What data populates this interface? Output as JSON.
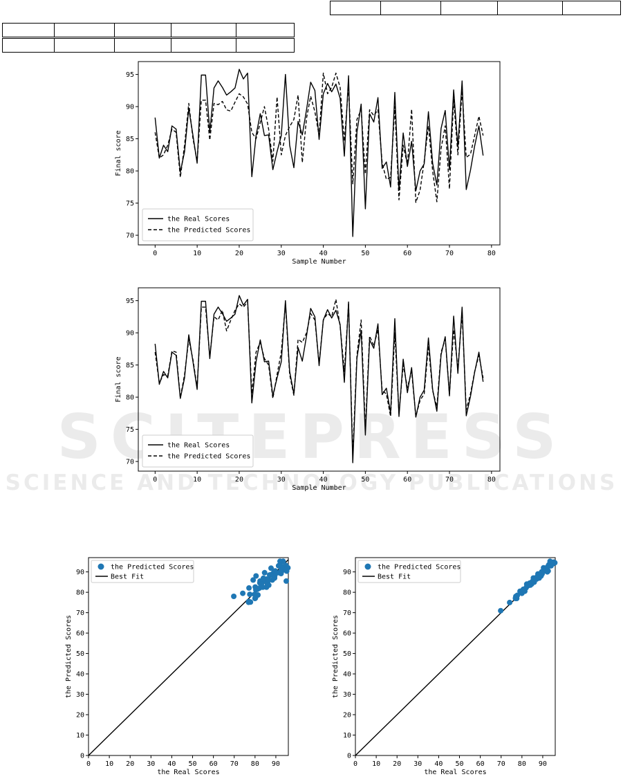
{
  "watermark": {
    "line1": "SCITEPRESS",
    "line2": "SCIENCE AND TECHNOLOGY PUBLICATIONS"
  },
  "chart_data": [
    {
      "type": "line",
      "title": "",
      "xlabel": "Sample Number",
      "ylabel": "Final score",
      "xlim": [
        -4,
        82
      ],
      "ylim": [
        68.5,
        97
      ],
      "xticks": [
        0,
        10,
        20,
        30,
        40,
        50,
        60,
        70,
        80
      ],
      "yticks": [
        70,
        75,
        80,
        85,
        90,
        95
      ],
      "legend": "lower-left",
      "series": [
        {
          "name": "the Real Scores",
          "style": "solid",
          "values": [
            88.3,
            82.0,
            84.0,
            83.0,
            87.0,
            86.5,
            79.8,
            83.0,
            89.7,
            85.5,
            81.2,
            94.9,
            94.9,
            86.0,
            92.9,
            94.0,
            93.0,
            91.8,
            92.3,
            92.9,
            95.8,
            94.3,
            95.2,
            79.1,
            85.5,
            88.9,
            85.5,
            85.6,
            80.2,
            83.0,
            85.5,
            95.0,
            84.0,
            80.5,
            87.7,
            85.6,
            89.5,
            93.8,
            92.5,
            84.9,
            92.0,
            93.6,
            92.3,
            93.5,
            91.3,
            82.3,
            94.8,
            69.8,
            86.0,
            90.4,
            74.1,
            88.9,
            87.6,
            91.4,
            80.4,
            81.4,
            77.5,
            92.2,
            77.0,
            85.9,
            80.7,
            84.6,
            76.9,
            80.0,
            81.1,
            89.2,
            81.2,
            77.8,
            86.6,
            89.4,
            80.2,
            92.6,
            83.7,
            94.0,
            77.1,
            80.1,
            83.9,
            87.0,
            82.4
          ]
        },
        {
          "name": "the Predicted Scores",
          "style": "dashed",
          "values": [
            86.0,
            82.0,
            82.5,
            84.0,
            86.5,
            86.0,
            79.0,
            84.0,
            90.5,
            85.0,
            81.5,
            91.0,
            91.0,
            84.8,
            90.5,
            90.3,
            90.8,
            89.5,
            89.3,
            90.7,
            92.0,
            91.5,
            90.4,
            86.0,
            85.0,
            87.5,
            90.0,
            86.5,
            81.5,
            91.5,
            82.5,
            85.5,
            86.9,
            88.0,
            91.8,
            81.3,
            88.2,
            91.6,
            89.2,
            85.5,
            95.2,
            92.0,
            93.0,
            95.2,
            93.0,
            84.6,
            93.2,
            78.0,
            88.0,
            89.5,
            79.5,
            89.5,
            88.6,
            89.5,
            81.2,
            78.7,
            79.0,
            90.0,
            75.5,
            84.0,
            81.0,
            89.6,
            75.1,
            77.0,
            81.5,
            87.0,
            80.0,
            75.2,
            83.5,
            87.0,
            77.2,
            91.2,
            82.5,
            92.5,
            82.1,
            82.6,
            85.5,
            88.5,
            85.5
          ]
        }
      ]
    },
    {
      "type": "line",
      "title": "",
      "xlabel": "Sample Number",
      "ylabel": "Final score",
      "xlim": [
        -4,
        82
      ],
      "ylim": [
        68.5,
        97
      ],
      "xticks": [
        0,
        10,
        20,
        30,
        40,
        50,
        60,
        70,
        80
      ],
      "yticks": [
        70,
        75,
        80,
        85,
        90,
        95
      ],
      "legend": "lower-left",
      "series": [
        {
          "name": "the Real Scores",
          "style": "solid",
          "values": [
            88.3,
            82.0,
            84.0,
            83.0,
            87.0,
            86.5,
            79.8,
            83.0,
            89.7,
            85.5,
            81.2,
            94.9,
            94.9,
            86.0,
            92.9,
            94.0,
            93.0,
            91.8,
            92.3,
            92.9,
            95.8,
            94.3,
            95.2,
            79.1,
            85.5,
            88.9,
            85.5,
            85.6,
            80.2,
            83.0,
            85.5,
            95.0,
            84.0,
            80.5,
            87.7,
            85.6,
            89.5,
            93.8,
            92.5,
            84.9,
            92.0,
            93.6,
            92.3,
            93.5,
            91.3,
            82.3,
            94.8,
            69.8,
            86.0,
            90.4,
            74.1,
            88.9,
            87.6,
            91.4,
            80.4,
            81.4,
            77.5,
            92.2,
            77.0,
            85.9,
            80.7,
            84.6,
            76.9,
            80.0,
            81.1,
            89.2,
            81.2,
            77.8,
            86.6,
            89.4,
            80.2,
            92.6,
            83.7,
            94.0,
            77.1,
            80.1,
            83.9,
            87.0,
            82.4
          ]
        },
        {
          "name": "the Predicted Scores",
          "style": "dashed",
          "values": [
            87.0,
            82.2,
            83.5,
            83.3,
            87.2,
            87.0,
            79.9,
            83.5,
            89.0,
            85.8,
            81.5,
            94.0,
            94.0,
            86.3,
            92.5,
            92.0,
            93.5,
            90.3,
            92.0,
            93.5,
            94.5,
            94.0,
            94.8,
            80.5,
            87.0,
            88.5,
            86.0,
            85.0,
            79.8,
            83.5,
            87.0,
            94.5,
            83.5,
            80.3,
            89.0,
            88.5,
            90.0,
            93.0,
            92.0,
            85.2,
            92.0,
            93.0,
            92.5,
            95.2,
            91.0,
            84.0,
            94.5,
            71.0,
            86.5,
            92.0,
            75.0,
            89.5,
            88.0,
            90.5,
            81.0,
            80.5,
            77.0,
            90.0,
            77.5,
            85.0,
            81.5,
            84.0,
            77.0,
            79.5,
            80.5,
            88.0,
            81.0,
            78.5,
            87.0,
            89.0,
            80.5,
            90.5,
            84.5,
            93.0,
            78.0,
            80.5,
            84.0,
            86.5,
            83.0
          ]
        }
      ]
    },
    {
      "type": "scatter",
      "title": "",
      "xlabel": "the Real Scores",
      "ylabel": "the Predicted Scores",
      "xlim": [
        0,
        96
      ],
      "ylim": [
        0,
        97
      ],
      "xticks": [
        0,
        10,
        20,
        30,
        40,
        50,
        60,
        70,
        80,
        90
      ],
      "yticks": [
        0,
        10,
        20,
        30,
        40,
        50,
        60,
        70,
        80,
        90
      ],
      "legend": "top-left",
      "color": "#1f77b4",
      "series": [
        {
          "name": "the Predicted Scores",
          "x": [
            69.8,
            74.1,
            77.0,
            77.1,
            77.5,
            77.8,
            79.1,
            80.1,
            80.2,
            80.4,
            80.5,
            81.2,
            81.4,
            82.0,
            82.3,
            83.0,
            83.9,
            84.0,
            84.6,
            85.5,
            85.6,
            86.0,
            86.6,
            87.0,
            87.7,
            88.3,
            88.9,
            89.4,
            89.7,
            90.4,
            91.3,
            91.8,
            92.2,
            92.5,
            92.9,
            93.5,
            94.0,
            94.8,
            95.0,
            95.8,
            76.9,
            79.8,
            81.1,
            83.7,
            84.9,
            85.9,
            87.6,
            89.2,
            89.5,
            92.0,
            92.3,
            92.6,
            93.6,
            94.3,
            94.9,
            95.2,
            86.5,
            82.4,
            83.0,
            80.0
          ],
          "y": [
            78.0,
            79.5,
            75.5,
            82.1,
            79.0,
            75.2,
            86.0,
            82.6,
            77.2,
            81.2,
            88.0,
            81.5,
            78.7,
            82.0,
            84.6,
            84.0,
            85.5,
            86.9,
            89.6,
            82.5,
            86.5,
            84.8,
            83.5,
            88.5,
            91.8,
            86.0,
            89.5,
            87.0,
            90.5,
            89.5,
            93.0,
            89.5,
            90.0,
            89.2,
            90.5,
            95.2,
            92.5,
            93.2,
            85.5,
            92.0,
            75.1,
            79.0,
            81.5,
            82.5,
            85.5,
            84.0,
            88.6,
            87.0,
            88.2,
            95.2,
            93.0,
            91.2,
            92.0,
            91.5,
            91.0,
            90.4,
            86.0,
            85.5,
            84.0,
            77.0
          ]
        },
        {
          "name": "Best Fit",
          "type": "line",
          "x": [
            0,
            96
          ],
          "y": [
            0,
            96
          ]
        }
      ]
    },
    {
      "type": "scatter",
      "title": "",
      "xlabel": "the Real Scores",
      "ylabel": "the Predicted Scores",
      "xlim": [
        0,
        96
      ],
      "ylim": [
        0,
        97
      ],
      "xticks": [
        0,
        10,
        20,
        30,
        40,
        50,
        60,
        70,
        80,
        90
      ],
      "yticks": [
        0,
        10,
        20,
        30,
        40,
        50,
        60,
        70,
        80,
        90
      ],
      "legend": "top-left",
      "color": "#1f77b4",
      "series": [
        {
          "name": "the Predicted Scores",
          "x": [
            69.8,
            74.1,
            76.9,
            77.0,
            77.1,
            77.5,
            77.8,
            79.1,
            79.8,
            80.0,
            80.1,
            80.2,
            80.4,
            80.5,
            80.7,
            81.1,
            81.2,
            81.4,
            82.0,
            82.3,
            82.4,
            83.0,
            83.7,
            83.9,
            84.0,
            84.6,
            84.9,
            85.5,
            85.6,
            85.9,
            86.0,
            86.5,
            86.6,
            87.0,
            87.6,
            87.7,
            88.3,
            88.9,
            89.2,
            89.4,
            89.5,
            89.7,
            90.4,
            91.3,
            91.8,
            92.0,
            92.2,
            92.3,
            92.6,
            92.9,
            93.5,
            93.6,
            94.0,
            94.3,
            94.8,
            94.9,
            95.0,
            95.2,
            95.8
          ],
          "y": [
            71.0,
            75.0,
            77.0,
            77.5,
            78.0,
            77.0,
            78.5,
            80.5,
            79.9,
            79.5,
            80.5,
            80.5,
            81.0,
            80.3,
            81.5,
            80.5,
            81.0,
            80.5,
            82.2,
            84.0,
            83.0,
            83.3,
            84.5,
            84.0,
            83.5,
            84.0,
            85.2,
            87.0,
            85.0,
            85.0,
            86.3,
            87.0,
            87.0,
            86.5,
            88.0,
            89.0,
            87.0,
            88.5,
            88.0,
            89.0,
            90.0,
            89.0,
            92.0,
            91.0,
            90.3,
            92.0,
            90.0,
            92.5,
            90.5,
            93.5,
            95.2,
            93.0,
            93.0,
            94.0,
            94.5,
            94.0,
            94.5,
            94.8,
            94.5
          ]
        },
        {
          "name": "Best Fit",
          "type": "line",
          "x": [
            0,
            96
          ],
          "y": [
            0,
            96
          ]
        }
      ]
    }
  ]
}
